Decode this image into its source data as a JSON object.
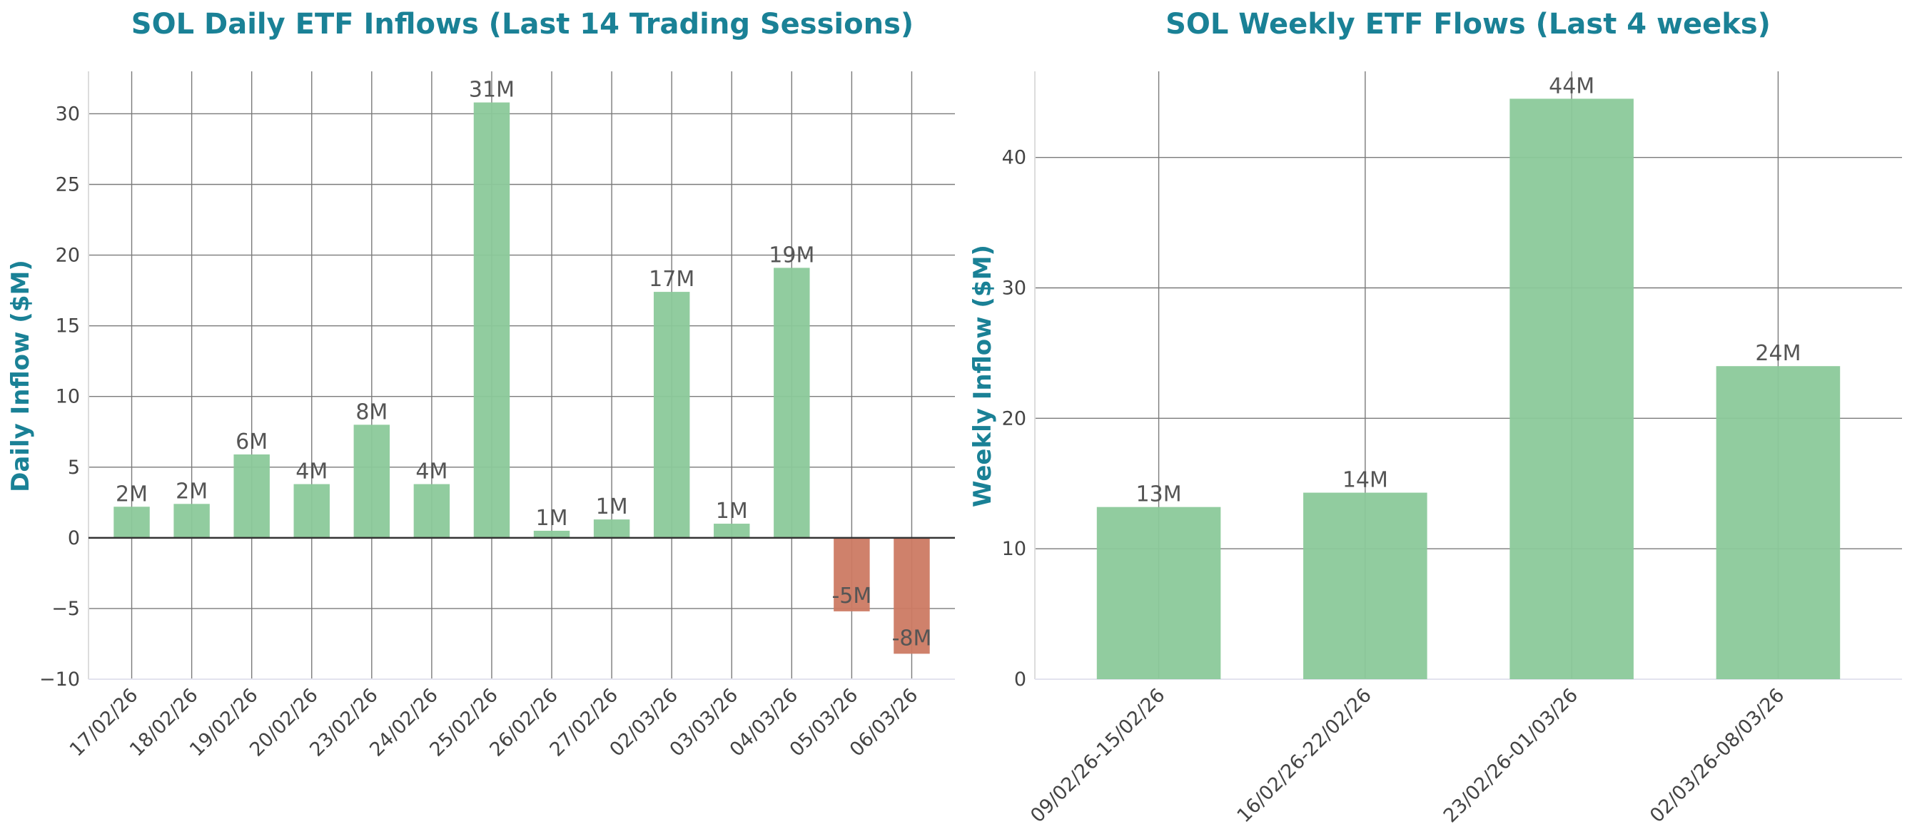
{
  "colors": {
    "title": "#1a8196",
    "positive": "#8bc99a",
    "negative": "#cc7a63",
    "grid": "#7a7a7a",
    "text": "#444444"
  },
  "chart_data": [
    {
      "type": "bar",
      "title": "SOL Daily ETF Inflows (Last 14 Trading Sessions)",
      "xlabel": "",
      "ylabel": "Daily Inflow ($M)",
      "ylim": [
        -10,
        33
      ],
      "yticks": [
        -10,
        -5,
        0,
        5,
        10,
        15,
        20,
        25,
        30
      ],
      "ytick_labels": [
        "−10",
        "−5",
        "0",
        "5",
        "10",
        "15",
        "20",
        "25",
        "30"
      ],
      "grid": true,
      "categories": [
        "17/02/26",
        "18/02/26",
        "19/02/26",
        "20/02/26",
        "23/02/26",
        "24/02/26",
        "25/02/26",
        "26/02/26",
        "27/02/26",
        "02/03/26",
        "03/03/26",
        "04/03/26",
        "05/03/26",
        "06/03/26"
      ],
      "values": [
        2.2,
        2.4,
        5.9,
        3.8,
        8.0,
        3.8,
        30.8,
        0.5,
        1.3,
        17.4,
        1.0,
        19.1,
        -5.2,
        -8.2
      ],
      "data_labels": [
        "2M",
        "2M",
        "6M",
        "4M",
        "8M",
        "4M",
        "31M",
        "1M",
        "1M",
        "17M",
        "1M",
        "19M",
        "-5M",
        "-8M"
      ]
    },
    {
      "type": "bar",
      "title": "SOL Weekly ETF Flows (Last 4 weeks)",
      "xlabel": "",
      "ylabel": "Weekly Inflow ($M)",
      "ylim": [
        0,
        46.6
      ],
      "yticks": [
        0,
        10,
        20,
        30,
        40
      ],
      "ytick_labels": [
        "0",
        "10",
        "20",
        "30",
        "40"
      ],
      "grid": true,
      "categories": [
        "09/02/26-15/02/26",
        "16/02/26-22/02/26",
        "23/02/26-01/03/26",
        "02/03/26-08/03/26"
      ],
      "values": [
        13.2,
        14.3,
        44.5,
        24.0
      ],
      "data_labels": [
        "13M",
        "14M",
        "44M",
        "24M"
      ]
    }
  ]
}
